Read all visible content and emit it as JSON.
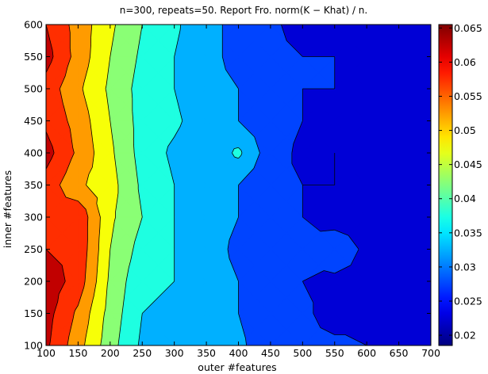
{
  "chart_data": {
    "type": "contourf",
    "title": "n=300, repeats=50. Report Fro. norm(K − Khat) / n.",
    "xlabel": "outer #features",
    "ylabel": "inner #features",
    "x": [
      100,
      150,
      200,
      250,
      300,
      350,
      400,
      450,
      500,
      550,
      600,
      650,
      700
    ],
    "y": [
      100,
      150,
      200,
      250,
      300,
      350,
      400,
      450,
      500,
      550,
      600
    ],
    "xlim": [
      100,
      700
    ],
    "ylim": [
      100,
      600
    ],
    "x_ticks": [
      100,
      150,
      200,
      250,
      300,
      350,
      400,
      450,
      500,
      550,
      600,
      650,
      700
    ],
    "y_ticks": [
      100,
      150,
      200,
      250,
      300,
      350,
      400,
      450,
      500,
      550,
      600
    ],
    "z": [
      [
        0.061,
        0.052,
        0.042,
        0.034,
        0.033,
        0.033,
        0.031,
        0.027,
        0.026,
        0.026,
        0.025,
        0.024,
        0.022
      ],
      [
        0.062,
        0.054,
        0.043,
        0.035,
        0.034,
        0.032,
        0.03,
        0.027,
        0.026,
        0.023,
        0.024,
        0.022,
        0.021
      ],
      [
        0.063,
        0.058,
        0.044,
        0.036,
        0.035,
        0.032,
        0.03,
        0.027,
        0.025,
        0.024,
        0.024,
        0.023,
        0.021
      ],
      [
        0.06,
        0.059,
        0.045,
        0.038,
        0.035,
        0.032,
        0.029,
        0.026,
        0.025,
        0.028,
        0.024,
        0.023,
        0.021
      ],
      [
        0.057,
        0.059,
        0.046,
        0.04,
        0.035,
        0.032,
        0.03,
        0.026,
        0.025,
        0.023,
        0.023,
        0.022,
        0.021
      ],
      [
        0.058,
        0.051,
        0.047,
        0.039,
        0.035,
        0.031,
        0.03,
        0.026,
        0.025,
        0.025,
        0.024,
        0.022,
        0.023
      ],
      [
        0.062,
        0.054,
        0.046,
        0.038,
        0.034,
        0.031,
        0.036,
        0.027,
        0.024,
        0.025,
        0.024,
        0.022,
        0.021
      ],
      [
        0.059,
        0.053,
        0.045,
        0.038,
        0.036,
        0.032,
        0.03,
        0.027,
        0.025,
        0.024,
        0.024,
        0.022,
        0.021
      ],
      [
        0.058,
        0.051,
        0.044,
        0.038,
        0.035,
        0.031,
        0.03,
        0.027,
        0.025,
        0.025,
        0.024,
        0.022,
        0.021
      ],
      [
        0.062,
        0.053,
        0.045,
        0.039,
        0.035,
        0.031,
        0.029,
        0.026,
        0.025,
        0.025,
        0.023,
        0.022,
        0.021
      ],
      [
        0.06,
        0.053,
        0.046,
        0.04,
        0.036,
        0.031,
        0.029,
        0.026,
        0.023,
        0.022,
        0.023,
        0.022,
        0.021
      ]
    ],
    "levels": [
      0.015,
      0.02,
      0.025,
      0.03,
      0.035,
      0.04,
      0.045,
      0.05,
      0.055,
      0.06,
      0.065
    ],
    "colorbar": {
      "min": 0.0185,
      "max": 0.0655,
      "ticks": [
        0.02,
        0.025,
        0.03,
        0.035,
        0.04,
        0.045,
        0.05,
        0.055,
        0.06,
        0.065
      ],
      "tick_labels": [
        "0.02",
        "0.025",
        "0.03",
        "0.035",
        "0.04",
        "0.045",
        "0.05",
        "0.055",
        "0.06",
        "0.065"
      ],
      "colormap": "jet"
    },
    "grid": false,
    "legend": "none"
  }
}
